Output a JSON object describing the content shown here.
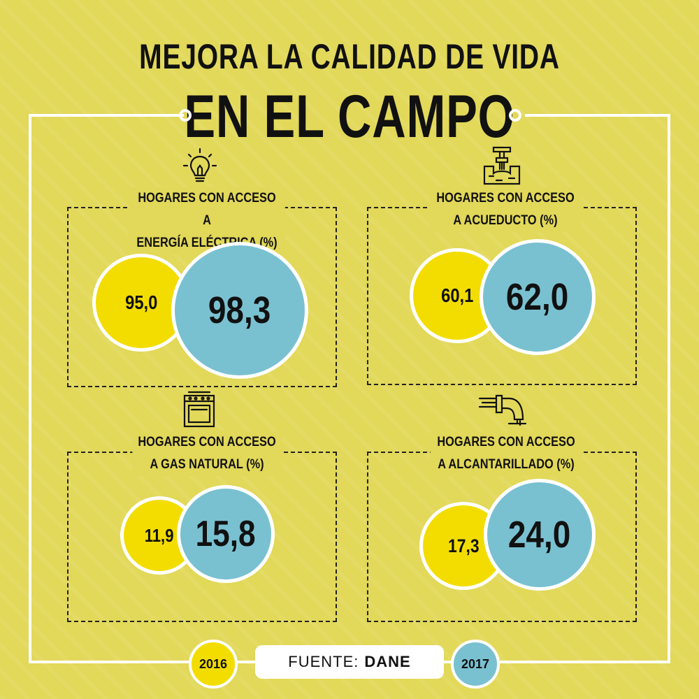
{
  "header": {
    "title_line1": "MEJORA LA CALIDAD DE VIDA",
    "title_line2": "EN EL CAMPO"
  },
  "colors": {
    "background": "#e2d859",
    "year_2016": "#f3dd00",
    "year_2017": "#79c1d1",
    "frame": "#ffffff"
  },
  "panels": [
    {
      "title_line1": "HOGARES CON ACCESO A",
      "title_line2": "ENERGÍA ELÉCTRICA (%)",
      "icon": "lightbulb-icon",
      "value_2016": "95,0",
      "value_2017": "98,3"
    },
    {
      "title_line1": "HOGARES CON ACCESO",
      "title_line2": "A ACUEDUCTO (%)",
      "icon": "water-tap-icon",
      "value_2016": "60,1",
      "value_2017": "62,0"
    },
    {
      "title_line1": "HOGARES CON ACCESO",
      "title_line2": "A GAS NATURAL (%)",
      "icon": "stove-icon",
      "value_2016": "11,9",
      "value_2017": "15,8"
    },
    {
      "title_line1": "HOGARES CON ACCESO",
      "title_line2": "A ALCANTARILLADO (%)",
      "icon": "sewer-pipe-icon",
      "value_2016": "17,3",
      "value_2017": "24,0"
    }
  ],
  "legend": {
    "year_old": "2016",
    "year_new": "2017"
  },
  "source": {
    "prefix": "FUENTE:",
    "name": "DANE"
  },
  "chart_data": {
    "type": "bar",
    "categories": [
      "HOGARES CON ACCESO A ENERGÍA ELÉCTRICA (%)",
      "HOGARES CON ACCESO A ACUEDUCTO (%)",
      "HOGARES CON ACCESO A GAS NATURAL (%)",
      "HOGARES CON ACCESO A ALCANTARILLADO (%)"
    ],
    "series": [
      {
        "name": "2016",
        "values": [
          95.0,
          60.1,
          11.9,
          17.3
        ]
      },
      {
        "name": "2017",
        "values": [
          98.3,
          62.0,
          15.8,
          24.0
        ]
      }
    ],
    "title": "MEJORA LA CALIDAD DE VIDA EN EL CAMPO"
  }
}
